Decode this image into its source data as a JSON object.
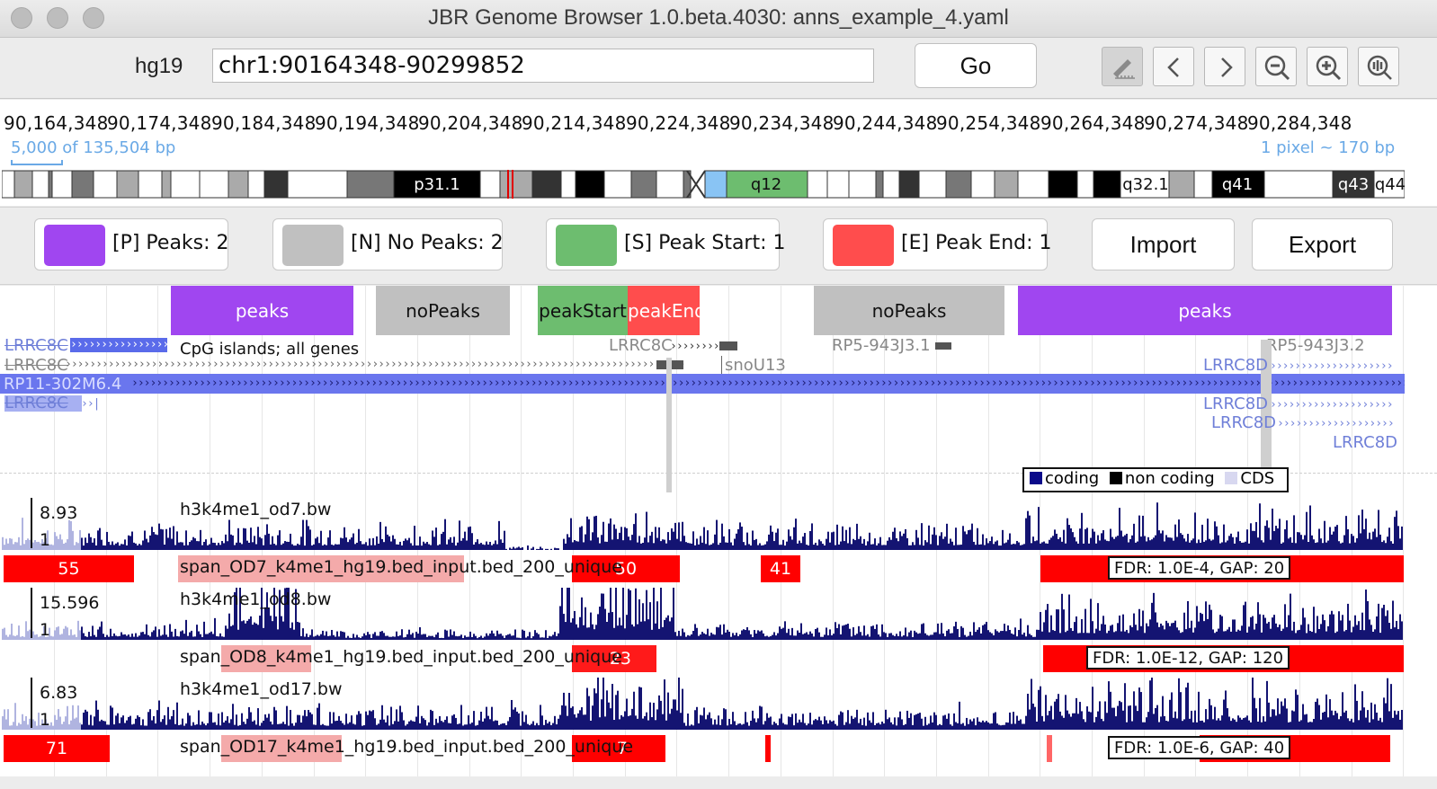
{
  "window": {
    "title": "JBR Genome Browser 1.0.beta.4030: anns_example_4.yaml"
  },
  "toolbar": {
    "genome": "hg19",
    "location": "chr1:90164348-90299852",
    "go_label": "Go",
    "icons": [
      "pencil-ruler-icon",
      "chevron-left-icon",
      "chevron-right-icon",
      "zoom-out-icon",
      "zoom-in-icon",
      "zoom-fit-icon"
    ]
  },
  "ruler": {
    "ticks": [
      "90,164,348",
      "90,174,348",
      "90,184,348",
      "90,194,348",
      "90,204,348",
      "90,214,348",
      "90,224,348",
      "90,234,348",
      "90,244,348",
      "90,254,348",
      "90,264,348",
      "90,274,348",
      "90,284,348"
    ],
    "scale_left": "5,000 of 135,504 bp",
    "scale_right": "1 pixel ~ 170 bp",
    "bands": [
      "p31.1",
      "q12",
      "q32.1",
      "q41",
      "q43",
      "q44"
    ]
  },
  "legend": {
    "peaks": {
      "label": "[P] Peaks: 2",
      "color": "#a046f0"
    },
    "no_peaks": {
      "label": "[N] No Peaks: 2",
      "color": "#c0c0c0"
    },
    "peak_start": {
      "label": "[S] Peak Start: 1",
      "color": "#6dbd6f"
    },
    "peak_end": {
      "label": "[E] Peak End: 1",
      "color": "#ff4d4d"
    },
    "import_label": "Import",
    "export_label": "Export"
  },
  "annotations": [
    {
      "label": "peaks",
      "color": "#a046f0"
    },
    {
      "label": "noPeaks",
      "color": "#c0c0c0"
    },
    {
      "label": "peakStart",
      "color": "#6dbd6f"
    },
    {
      "label": "peakEnd",
      "color": "#ff4d4d"
    },
    {
      "label": "noPeaks",
      "color": "#c0c0c0"
    },
    {
      "label": "peaks",
      "color": "#a046f0"
    }
  ],
  "genes": {
    "track_name": "CpG islands; all genes",
    "labels": [
      "LRRC8C",
      "LRRC8C",
      "RP11-302M6.4",
      "LRRC8C",
      "LRRC8C",
      "snoU13",
      "RP5-943J3.1",
      "RP5-943J3.2",
      "LRRC8D",
      "LRRC8D",
      "LRRC8D",
      "LRRC8D"
    ],
    "legend": {
      "coding": "coding",
      "non_coding": "non coding",
      "cds": "CDS"
    },
    "colors": {
      "coding": "#0a0a8a",
      "non_coding": "#000000",
      "cds": "#d8d8f0"
    }
  },
  "tracks": [
    {
      "name": "h3k4me1_od7.bw",
      "max": "8.93",
      "min": "1"
    },
    {
      "name": "span_OD7_k4me1_hg19.bed_input.bed_200_unique",
      "peaks": [
        "55",
        "50",
        "41"
      ],
      "fdr": "FDR: 1.0E-4, GAP: 20"
    },
    {
      "name": "h3k4me1_od8.bw",
      "max": "15.596",
      "min": "1"
    },
    {
      "name": "span_OD8_k4me1_hg19.bed_input.bed_200_unique",
      "peaks": [
        "23"
      ],
      "fdr": "FDR: 1.0E-12, GAP: 120"
    },
    {
      "name": "h3k4me1_od17.bw",
      "max": "6.83",
      "min": "1"
    },
    {
      "name": "span_OD17_k4me1_hg19.bed_input.bed_200_unique",
      "peaks": [
        "71",
        "7"
      ],
      "fdr": "FDR: 1.0E-6, GAP: 40"
    }
  ]
}
